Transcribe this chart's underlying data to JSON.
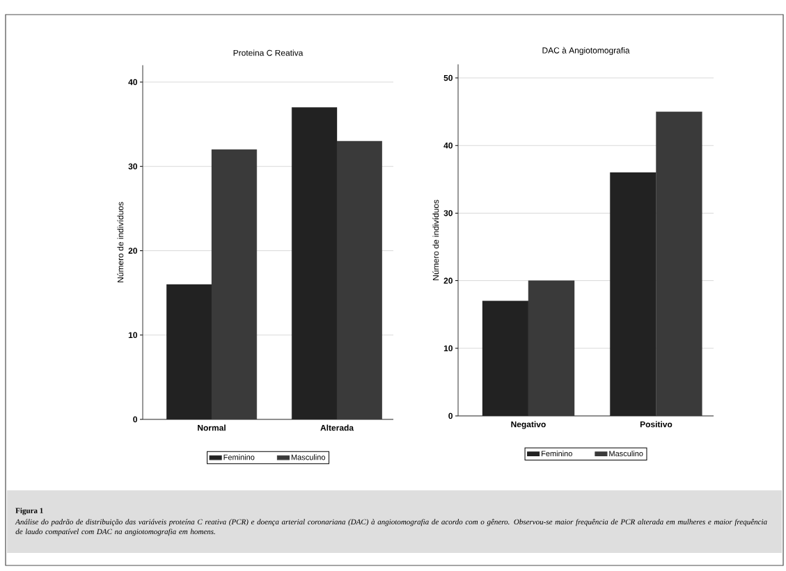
{
  "chart_data": [
    {
      "type": "bar",
      "title": "Proteina C Reativa",
      "ylabel": "Número de indivíduos",
      "categories": [
        "Normal",
        "Alterada"
      ],
      "series": [
        {
          "name": "Feminino",
          "color": "#222222",
          "values": [
            16,
            37
          ]
        },
        {
          "name": "Masculino",
          "color": "#3a3a3a",
          "values": [
            32,
            33
          ]
        }
      ],
      "ylim": [
        0,
        42
      ],
      "yticks": [
        0,
        10,
        20,
        30,
        40
      ],
      "grid": "y",
      "legend": "bottom"
    },
    {
      "type": "bar",
      "title": "DAC à Angiotomografia",
      "ylabel": "Número de indivíduos",
      "categories": [
        "Negativo",
        "Positivo"
      ],
      "series": [
        {
          "name": "Feminino",
          "color": "#222222",
          "values": [
            17,
            36
          ]
        },
        {
          "name": "Masculino",
          "color": "#3a3a3a",
          "values": [
            20,
            45
          ]
        }
      ],
      "ylim": [
        0,
        52
      ],
      "yticks": [
        0,
        10,
        20,
        30,
        40,
        50
      ],
      "grid": "y",
      "legend": "bottom",
      "annotations": [
        "Figura 1",
        "Análise do padrão de distribuição das variáveis proteína C reativa (PCR) e doença arterial coronariana (DAC) à angiotomografia de acordo com o gênero. Observou-se maior frequência de PCR alterada em mulheres e maior frequência de laudo compatível com DAC na angiotomografia em homens."
      ]
    }
  ]
}
